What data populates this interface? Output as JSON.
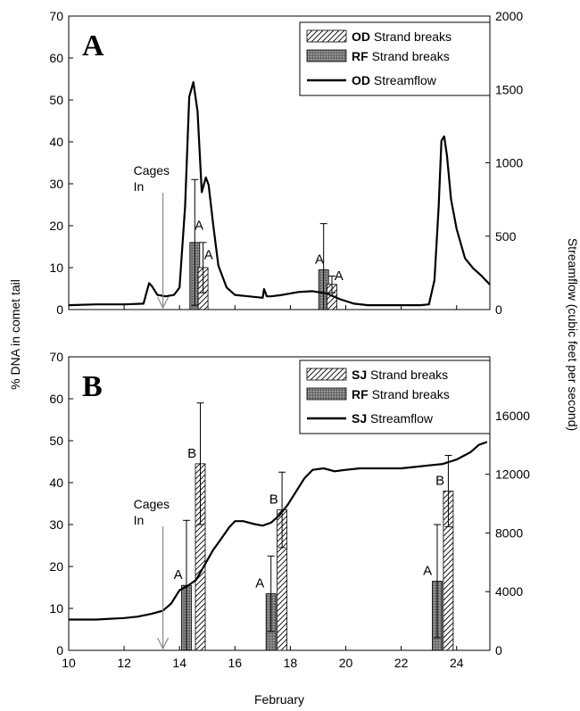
{
  "chart_data": [
    {
      "panel": "A",
      "type": "bar",
      "ylabel_left": "% DNA in comet tail",
      "ylabel_right": "Streamflow (cubic feet per second)",
      "xlabel": "February",
      "xlim": [
        10,
        25.2
      ],
      "ylim_left": [
        0,
        70
      ],
      "ylim_right": [
        0,
        2000
      ],
      "yticks_left": [
        0,
        10,
        20,
        30,
        40,
        50,
        60,
        70
      ],
      "yticks_right": [
        0,
        500,
        1000,
        1500,
        2000
      ],
      "legend": [
        {
          "label_bold": "OD",
          "label": "Strand breaks",
          "kind": "hatch"
        },
        {
          "label_bold": "RF",
          "label": "Strand breaks",
          "kind": "grey"
        },
        {
          "label_bold": "OD",
          "label": "Streamflow",
          "kind": "line"
        }
      ],
      "annotation": {
        "text1": "Cages",
        "text2": "In",
        "x": 13.4
      },
      "bars": [
        {
          "series": "RF",
          "x": 14.55,
          "value": 16,
          "err": 15
        },
        {
          "series": "OD",
          "x": 14.85,
          "value": 10,
          "err": 6
        },
        {
          "series": "RF",
          "x": 19.2,
          "value": 9.5,
          "err": 11
        },
        {
          "series": "OD",
          "x": 19.5,
          "value": 6,
          "err": 2
        }
      ],
      "letters": [
        {
          "text": "A",
          "x": 14.7,
          "y": 19
        },
        {
          "text": "A",
          "x": 15.05,
          "y": 12
        },
        {
          "text": "A",
          "x": 19.05,
          "y": 11
        },
        {
          "text": "A",
          "x": 19.75,
          "y": 7
        }
      ],
      "streamflow": {
        "x": [
          10,
          11,
          12,
          12.7,
          12.9,
          13.0,
          13.2,
          13.5,
          13.8,
          14.0,
          14.2,
          14.35,
          14.5,
          14.65,
          14.8,
          14.95,
          15.05,
          15.2,
          15.4,
          15.7,
          16.0,
          16.5,
          17.0,
          17.05,
          17.15,
          17.3,
          17.7,
          18.3,
          18.8,
          19.3,
          19.8,
          20.3,
          20.8,
          21.3,
          21.8,
          22.3,
          22.7,
          23.0,
          23.2,
          23.35,
          23.45,
          23.55,
          23.65,
          23.8,
          24.0,
          24.3,
          24.6,
          24.9,
          25.2
        ],
        "y": [
          30,
          35,
          35,
          40,
          180,
          160,
          100,
          90,
          100,
          150,
          700,
          1450,
          1550,
          1350,
          800,
          900,
          850,
          600,
          300,
          150,
          100,
          90,
          80,
          140,
          90,
          90,
          100,
          120,
          125,
          110,
          70,
          40,
          30,
          30,
          30,
          30,
          30,
          35,
          200,
          700,
          1150,
          1180,
          1050,
          750,
          550,
          350,
          280,
          230,
          170
        ]
      }
    },
    {
      "panel": "B",
      "type": "bar",
      "ylabel_left": "% DNA in comet tail",
      "ylabel_right": "Streamflow (cubic feet per second)",
      "xlabel": "February",
      "xlim": [
        10,
        25.2
      ],
      "ylim_left": [
        0,
        70
      ],
      "ylim_right": [
        0,
        20000
      ],
      "yticks_left": [
        0,
        10,
        20,
        30,
        40,
        50,
        60,
        70
      ],
      "yticks_right": [
        0,
        4000,
        8000,
        12000,
        16000
      ],
      "xticks": [
        10,
        12,
        14,
        16,
        18,
        20,
        22,
        24
      ],
      "legend": [
        {
          "label_bold": "SJ",
          "label": "Strand breaks",
          "kind": "hatch"
        },
        {
          "label_bold": "RF",
          "label": "Strand breaks",
          "kind": "grey"
        },
        {
          "label_bold": "SJ",
          "label": "Streamflow",
          "kind": "line"
        }
      ],
      "annotation": {
        "text1": "Cages",
        "text2": "In",
        "x": 13.4
      },
      "bars": [
        {
          "series": "RF",
          "x": 14.25,
          "value": 15.5,
          "err": 15.5
        },
        {
          "series": "SJ",
          "x": 14.75,
          "value": 44.5,
          "err": 14.5
        },
        {
          "series": "RF",
          "x": 17.3,
          "value": 13.5,
          "err": 9
        },
        {
          "series": "SJ",
          "x": 17.7,
          "value": 33.5,
          "err": 9
        },
        {
          "series": "RF",
          "x": 23.3,
          "value": 16.5,
          "err": 13.5
        },
        {
          "series": "SJ",
          "x": 23.7,
          "value": 38,
          "err": 8.5
        }
      ],
      "letters": [
        {
          "text": "A",
          "x": 13.95,
          "y": 17
        },
        {
          "text": "B",
          "x": 14.45,
          "y": 46
        },
        {
          "text": "A",
          "x": 16.9,
          "y": 15
        },
        {
          "text": "B",
          "x": 17.4,
          "y": 35
        },
        {
          "text": "A",
          "x": 22.95,
          "y": 18
        },
        {
          "text": "B",
          "x": 23.4,
          "y": 39.5
        }
      ],
      "streamflow": {
        "x": [
          10,
          10.5,
          11,
          11.5,
          12,
          12.5,
          13,
          13.4,
          13.7,
          14.0,
          14.3,
          14.6,
          14.9,
          15.2,
          15.5,
          15.8,
          16.0,
          16.3,
          16.7,
          17.0,
          17.3,
          17.6,
          17.9,
          18.2,
          18.5,
          18.8,
          19.2,
          19.6,
          20.0,
          20.5,
          21.0,
          21.5,
          22.0,
          22.5,
          23.0,
          23.5,
          24.0,
          24.5,
          24.8,
          25.1
        ],
        "y": [
          2100,
          2100,
          2100,
          2150,
          2200,
          2300,
          2500,
          2700,
          3200,
          4100,
          4400,
          4800,
          5800,
          6800,
          7600,
          8400,
          8800,
          8800,
          8600,
          8500,
          8700,
          9200,
          9900,
          10800,
          11700,
          12300,
          12400,
          12200,
          12300,
          12400,
          12400,
          12400,
          12400,
          12500,
          12600,
          12700,
          13000,
          13500,
          14000,
          14200
        ]
      }
    }
  ]
}
